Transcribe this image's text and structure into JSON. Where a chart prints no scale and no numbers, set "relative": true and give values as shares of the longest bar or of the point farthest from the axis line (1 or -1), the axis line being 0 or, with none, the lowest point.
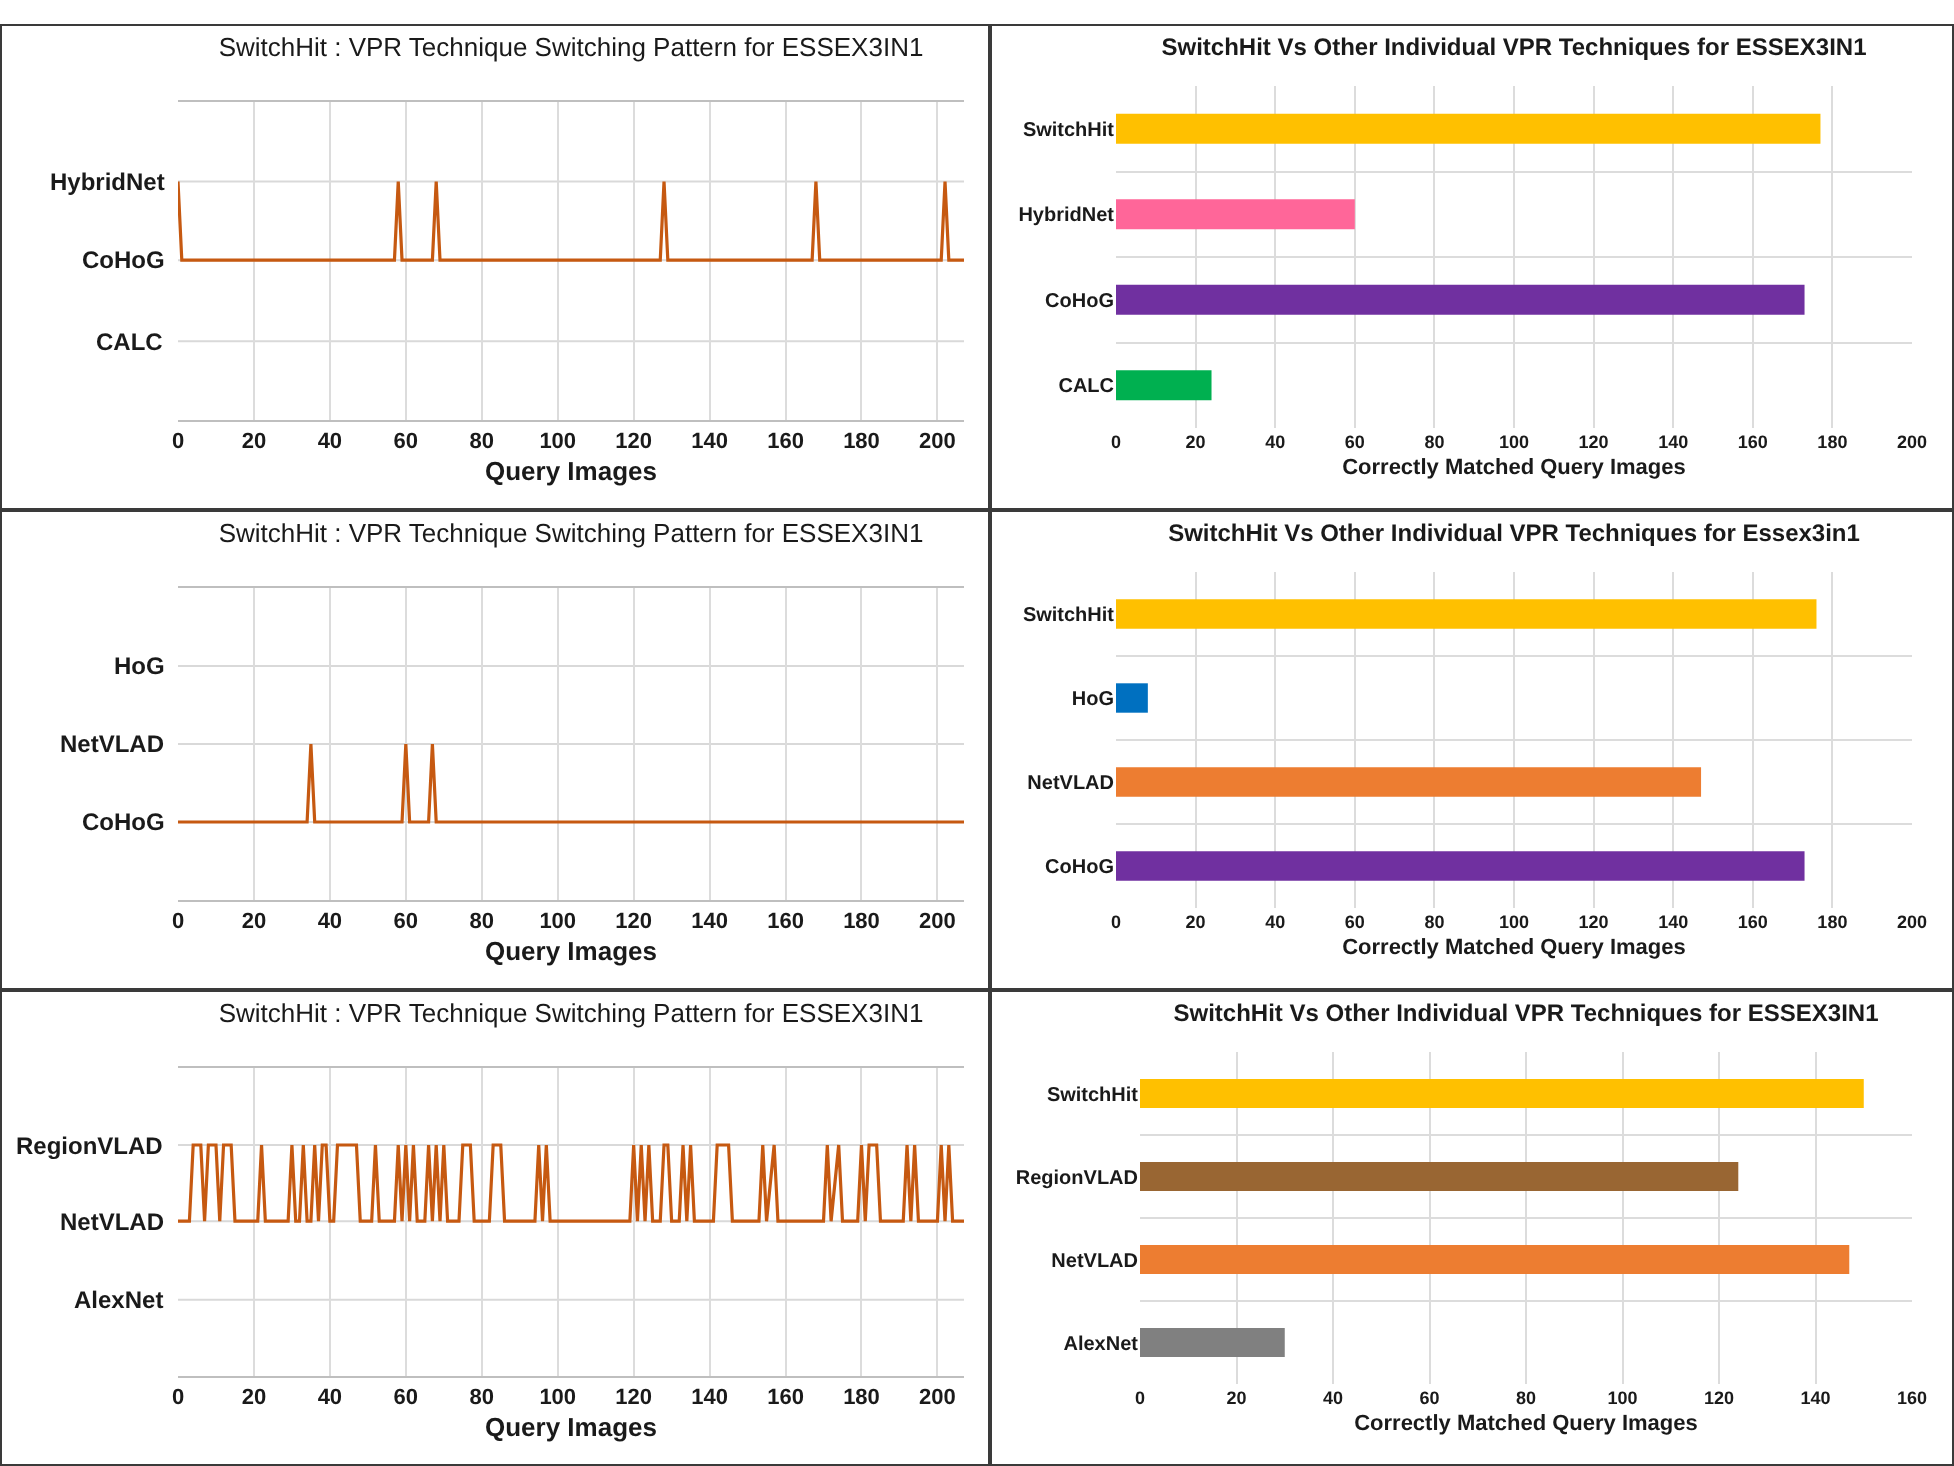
{
  "chart_data": [
    {
      "type": "line",
      "relative": true,
      "title": "SwitchHit : VPR Technique Switching Pattern for ESSEX3IN1",
      "xlabel": "Query Images",
      "xlim": [
        0,
        207
      ],
      "xticks": [
        0,
        20,
        40,
        60,
        80,
        100,
        120,
        140,
        160,
        180,
        200
      ],
      "grid": "x",
      "ref_lines": [
        {
          "axis": "y",
          "value": 1,
          "label": "HybridNet",
          "color": "#d9d9d9"
        },
        {
          "axis": "y",
          "value": 0.67,
          "label": "CoHoG",
          "color": "#d9d9d9"
        },
        {
          "axis": "y",
          "value": 0.33,
          "label": "CALC",
          "color": "#d9d9d9"
        }
      ],
      "series": [
        {
          "color": "#c65911",
          "x": [
            0,
            1,
            57,
            58,
            59,
            67,
            68,
            69,
            127,
            128,
            129,
            167,
            168,
            169,
            201,
            202,
            203,
            207
          ],
          "values": [
            1,
            0.67,
            0.67,
            1,
            0.67,
            0.67,
            1,
            0.67,
            0.67,
            1,
            0.67,
            0.67,
            1,
            0.67,
            0.67,
            1,
            0.67,
            0.67
          ]
        }
      ]
    },
    {
      "type": "bar",
      "orientation": "horizontal",
      "title": "SwitchHit Vs Other Individual VPR Techniques for ESSEX3IN1",
      "xlabel": "Correctly Matched Query Images",
      "categories": [
        "SwitchHit",
        "HybridNet",
        "CoHoG",
        "CALC"
      ],
      "values": [
        177,
        60,
        173,
        24
      ],
      "colors": [
        "#ffc000",
        "#ff6699",
        "#7030a0",
        "#00b050"
      ],
      "xlim": [
        0,
        200
      ],
      "xticks": [
        0,
        20,
        40,
        60,
        80,
        100,
        120,
        140,
        160,
        180,
        200
      ],
      "grid": true
    },
    {
      "type": "line",
      "relative": true,
      "title": "SwitchHit : VPR Technique Switching Pattern for ESSEX3IN1",
      "xlabel": "Query Images",
      "xlim": [
        0,
        207
      ],
      "xticks": [
        0,
        20,
        40,
        60,
        80,
        100,
        120,
        140,
        160,
        180,
        200
      ],
      "grid": "x",
      "ref_lines": [
        {
          "axis": "y",
          "value": 1.5,
          "label": "HoG",
          "color": "#d9d9d9"
        },
        {
          "axis": "y",
          "value": 1,
          "label": "NetVLAD",
          "color": "#d9d9d9"
        },
        {
          "axis": "y",
          "value": 0.5,
          "label": "CoHoG",
          "color": "#d9d9d9"
        }
      ],
      "series": [
        {
          "color": "#c65911",
          "x": [
            0,
            34,
            35,
            36,
            59,
            60,
            61,
            66,
            67,
            68,
            207
          ],
          "values": [
            0.5,
            0.5,
            1,
            0.5,
            0.5,
            1,
            0.5,
            0.5,
            1,
            0.5,
            0.5
          ]
        }
      ]
    },
    {
      "type": "bar",
      "orientation": "horizontal",
      "title": "SwitchHit Vs Other Individual VPR Techniques for Essex3in1",
      "xlabel": "Correctly Matched Query Images",
      "categories": [
        "SwitchHit",
        "HoG",
        "NetVLAD",
        "CoHoG"
      ],
      "values": [
        176,
        8,
        147,
        173
      ],
      "colors": [
        "#ffc000",
        "#0070c0",
        "#ed7d31",
        "#7030a0"
      ],
      "xlim": [
        0,
        200
      ],
      "xticks": [
        0,
        20,
        40,
        60,
        80,
        100,
        120,
        140,
        160,
        180,
        200
      ],
      "grid": true
    },
    {
      "type": "line",
      "relative": true,
      "title": "SwitchHit : VPR Technique Switching Pattern for ESSEX3IN1",
      "xlabel": "Query Images",
      "xlim": [
        0,
        207
      ],
      "xticks": [
        0,
        20,
        40,
        60,
        80,
        100,
        120,
        140,
        160,
        180,
        200
      ],
      "grid": "x",
      "ref_lines": [
        {
          "axis": "y",
          "value": 1,
          "label": "RegionVLAD",
          "color": "#d9d9d9"
        },
        {
          "axis": "y",
          "value": 0.67,
          "label": "NetVLAD",
          "color": "#d9d9d9"
        },
        {
          "axis": "y",
          "value": 0.33,
          "label": "AlexNet",
          "color": "#d9d9d9"
        }
      ],
      "series": [
        {
          "color": "#c65911",
          "x": [
            0,
            3,
            4,
            6,
            7,
            8,
            10,
            11,
            12,
            14,
            15,
            21,
            22,
            23,
            29,
            30,
            31,
            32,
            33,
            34,
            35,
            36,
            37,
            38,
            39,
            40,
            41,
            42,
            47,
            48,
            51,
            52,
            53,
            57,
            58,
            59,
            60,
            61,
            62,
            63,
            65,
            66,
            67,
            68,
            69,
            70,
            71,
            74,
            75,
            77,
            78,
            82,
            83,
            85,
            86,
            94,
            95,
            96,
            97,
            98,
            119,
            120,
            121,
            122,
            123,
            124,
            125,
            127,
            128,
            129,
            130,
            132,
            133,
            134,
            135,
            136,
            141,
            142,
            145,
            146,
            153,
            154,
            155,
            157,
            158,
            170,
            171,
            172,
            174,
            175,
            179,
            180,
            181,
            182,
            184,
            185,
            191,
            192,
            193,
            194,
            195,
            200,
            201,
            202,
            203,
            204,
            207
          ],
          "values": [
            0.67,
            0.67,
            1,
            1,
            0.67,
            1,
            1,
            0.67,
            1,
            1,
            0.67,
            0.67,
            1,
            0.67,
            0.67,
            1,
            0.67,
            0.67,
            1,
            0.67,
            0.67,
            1,
            0.67,
            1,
            1,
            0.67,
            0.67,
            1,
            1,
            0.67,
            0.67,
            1,
            0.67,
            0.67,
            1,
            0.67,
            1,
            0.67,
            1,
            0.67,
            0.67,
            1,
            0.67,
            1,
            0.67,
            1,
            0.67,
            0.67,
            1,
            1,
            0.67,
            0.67,
            1,
            1,
            0.67,
            0.67,
            1,
            0.67,
            1,
            0.67,
            0.67,
            1,
            0.67,
            1,
            0.67,
            1,
            0.67,
            0.67,
            1,
            1,
            0.67,
            0.67,
            1,
            0.67,
            1,
            0.67,
            0.67,
            1,
            1,
            0.67,
            0.67,
            1,
            0.67,
            1,
            0.67,
            0.67,
            1,
            0.67,
            1,
            0.67,
            0.67,
            1,
            0.67,
            1,
            1,
            0.67,
            0.67,
            1,
            0.67,
            1,
            0.67,
            0.67,
            1,
            0.67,
            1,
            0.67,
            0.67
          ]
        }
      ]
    },
    {
      "type": "bar",
      "orientation": "horizontal",
      "title": "SwitchHit Vs Other Individual VPR Techniques for ESSEX3IN1",
      "xlabel": "Correctly Matched Query Images",
      "categories": [
        "SwitchHit",
        "RegionVLAD",
        "NetVLAD",
        "AlexNet"
      ],
      "values": [
        150,
        124,
        147,
        30
      ],
      "colors": [
        "#ffc000",
        "#996633",
        "#ed7d31",
        "#808080"
      ],
      "xlim": [
        0,
        160
      ],
      "xticks": [
        0,
        20,
        40,
        60,
        80,
        100,
        120,
        140,
        160
      ],
      "grid": true
    }
  ]
}
